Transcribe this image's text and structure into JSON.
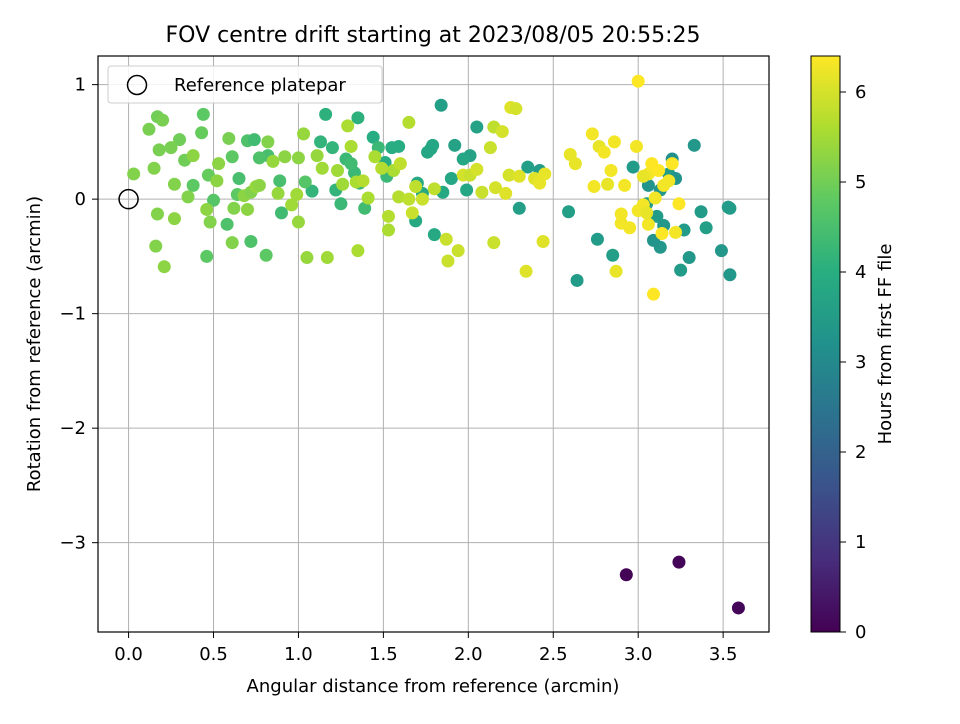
{
  "chart_data": {
    "type": "scatter",
    "title": "FOV centre drift starting at 2023/08/05 20:55:25",
    "xlabel": "Angular distance from reference (arcmin)",
    "ylabel": "Rotation from reference (arcmin)",
    "xlim": [
      -0.18,
      3.77
    ],
    "ylim": [
      -3.78,
      1.25
    ],
    "xticks": [
      0.0,
      0.5,
      1.0,
      1.5,
      2.0,
      2.5,
      3.0,
      3.5
    ],
    "xtick_labels": [
      "0.0",
      "0.5",
      "1.0",
      "1.5",
      "2.0",
      "2.5",
      "3.0",
      "3.5"
    ],
    "yticks": [
      -3,
      -2,
      -1,
      0,
      1
    ],
    "ytick_labels": [
      "−3",
      "−2",
      "−1",
      "0",
      "1"
    ],
    "grid": true,
    "legend": {
      "placement": "top-left",
      "entries": [
        "Reference platepar"
      ]
    },
    "reference_point": {
      "x": 0.0,
      "y": 0.0
    },
    "colorbar": {
      "label": "Hours from first FF file",
      "range": [
        0,
        6.4
      ],
      "ticks": [
        0,
        1,
        2,
        3,
        4,
        5,
        6
      ],
      "tick_labels": [
        "0",
        "1",
        "2",
        "3",
        "4",
        "5",
        "6"
      ],
      "colormap": "viridis"
    },
    "point_fields": [
      "x",
      "y",
      "hours"
    ],
    "points": [
      [
        2.93,
        -3.28,
        0.05
      ],
      [
        3.24,
        -3.17,
        0.08
      ],
      [
        3.59,
        -3.57,
        0.1
      ],
      [
        2.97,
        0.28,
        3.5
      ],
      [
        3.06,
        0.12,
        3.3
      ],
      [
        3.13,
        0.08,
        3.4
      ],
      [
        3.2,
        0.35,
        3.2
      ],
      [
        3.18,
        0.22,
        3.5
      ],
      [
        3.22,
        0.18,
        3.3
      ],
      [
        3.33,
        0.47,
        3.4
      ],
      [
        3.37,
        -0.11,
        3.5
      ],
      [
        3.4,
        -0.25,
        3.6
      ],
      [
        3.49,
        -0.45,
        3.4
      ],
      [
        3.53,
        -0.07,
        3.5
      ],
      [
        3.54,
        -0.08,
        3.5
      ],
      [
        3.54,
        -0.66,
        3.4
      ],
      [
        3.3,
        -0.51,
        3.4
      ],
      [
        3.27,
        -0.27,
        3.5
      ],
      [
        3.25,
        -0.62,
        3.5
      ],
      [
        3.13,
        -0.42,
        3.4
      ],
      [
        3.09,
        -0.36,
        3.3
      ],
      [
        3.15,
        -0.23,
        3.4
      ],
      [
        3.05,
        -0.04,
        3.5
      ],
      [
        3.11,
        -0.15,
        3.5
      ],
      [
        2.85,
        -0.49,
        3.6
      ],
      [
        2.76,
        -0.35,
        3.5
      ],
      [
        2.64,
        -0.71,
        3.5
      ],
      [
        2.59,
        -0.11,
        3.6
      ],
      [
        2.42,
        0.25,
        3.5
      ],
      [
        2.35,
        0.28,
        3.6
      ],
      [
        2.3,
        -0.08,
        3.6
      ],
      [
        2.05,
        0.63,
        3.7
      ],
      [
        2.01,
        0.38,
        3.7
      ],
      [
        1.84,
        0.82,
        3.6
      ],
      [
        1.92,
        0.47,
        3.7
      ],
      [
        1.97,
        0.35,
        3.8
      ],
      [
        1.99,
        0.08,
        3.8
      ],
      [
        1.9,
        0.18,
        3.8
      ],
      [
        1.78,
        0.44,
        3.8
      ],
      [
        1.79,
        0.47,
        3.8
      ],
      [
        1.76,
        0.41,
        3.8
      ],
      [
        1.69,
        -0.19,
        3.9
      ],
      [
        1.7,
        0.14,
        3.9
      ],
      [
        1.73,
        0.05,
        3.9
      ],
      [
        1.8,
        -0.31,
        3.9
      ],
      [
        1.85,
        0.06,
        3.9
      ],
      [
        1.55,
        0.45,
        4.0
      ],
      [
        1.59,
        0.46,
        4.0
      ],
      [
        1.51,
        0.32,
        4.0
      ],
      [
        1.44,
        0.54,
        4.0
      ],
      [
        1.35,
        0.71,
        4.1
      ],
      [
        1.16,
        0.74,
        4.1
      ],
      [
        1.2,
        0.45,
        4.2
      ],
      [
        1.13,
        0.5,
        4.2
      ],
      [
        1.08,
        0.07,
        4.2
      ],
      [
        1.22,
        0.08,
        4.2
      ],
      [
        1.25,
        -0.04,
        4.3
      ],
      [
        1.33,
        0.23,
        4.3
      ],
      [
        1.36,
        0.14,
        4.3
      ],
      [
        1.28,
        0.35,
        4.3
      ],
      [
        1.31,
        0.31,
        4.4
      ],
      [
        1.39,
        -0.08,
        4.4
      ],
      [
        1.47,
        0.45,
        4.3
      ],
      [
        1.52,
        0.2,
        4.3
      ],
      [
        0.89,
        0.16,
        4.5
      ],
      [
        0.82,
        0.38,
        4.5
      ],
      [
        0.9,
        -0.12,
        4.4
      ],
      [
        0.7,
        0.51,
        4.6
      ],
      [
        0.74,
        0.52,
        4.4
      ],
      [
        0.65,
        0.18,
        4.5
      ],
      [
        0.58,
        -0.22,
        4.6
      ],
      [
        0.72,
        -0.37,
        4.6
      ],
      [
        0.81,
        -0.49,
        4.8
      ],
      [
        0.77,
        0.36,
        4.6
      ],
      [
        1.04,
        0.15,
        4.7
      ],
      [
        0.5,
        -0.01,
        4.7
      ],
      [
        0.44,
        0.74,
        4.8
      ],
      [
        0.38,
        0.12,
        4.8
      ],
      [
        0.46,
        -0.5,
        4.8
      ],
      [
        0.61,
        0.37,
        4.8
      ],
      [
        0.64,
        0.04,
        4.8
      ],
      [
        0.43,
        0.58,
        4.9
      ],
      [
        0.47,
        0.21,
        4.9
      ],
      [
        0.3,
        0.52,
        5.0
      ],
      [
        0.33,
        0.34,
        5.0
      ],
      [
        0.17,
        0.72,
        5.0
      ],
      [
        0.2,
        0.69,
        5.1
      ],
      [
        0.12,
        0.61,
        5.1
      ],
      [
        0.18,
        0.43,
        5.1
      ],
      [
        0.15,
        0.27,
        5.2
      ],
      [
        0.03,
        0.22,
        5.2
      ],
      [
        0.17,
        -0.13,
        5.2
      ],
      [
        0.16,
        -0.41,
        5.2
      ],
      [
        0.21,
        -0.59,
        5.3
      ],
      [
        0.27,
        -0.17,
        5.3
      ],
      [
        0.27,
        0.13,
        5.2
      ],
      [
        0.25,
        0.45,
        5.1
      ],
      [
        0.35,
        0.02,
        5.2
      ],
      [
        0.38,
        0.38,
        5.3
      ],
      [
        0.46,
        -0.09,
        5.3
      ],
      [
        0.48,
        -0.2,
        5.2
      ],
      [
        0.52,
        0.16,
        5.3
      ],
      [
        0.53,
        0.31,
        5.3
      ],
      [
        0.59,
        0.53,
        5.1
      ],
      [
        0.62,
        -0.08,
        5.2
      ],
      [
        0.61,
        -0.38,
        5.2
      ],
      [
        0.68,
        0.03,
        5.3
      ],
      [
        0.7,
        -0.09,
        5.3
      ],
      [
        0.72,
        0.06,
        5.2
      ],
      [
        0.75,
        0.11,
        5.4
      ],
      [
        0.77,
        0.12,
        5.3
      ],
      [
        0.82,
        0.5,
        5.2
      ],
      [
        0.85,
        0.33,
        5.4
      ],
      [
        0.88,
        0.05,
        5.4
      ],
      [
        0.92,
        0.37,
        5.3
      ],
      [
        0.96,
        -0.05,
        5.5
      ],
      [
        0.99,
        0.04,
        5.5
      ],
      [
        1.0,
        -0.2,
        5.4
      ],
      [
        1.0,
        0.36,
        5.3
      ],
      [
        1.03,
        0.57,
        5.4
      ],
      [
        1.05,
        -0.51,
        5.4
      ],
      [
        1.11,
        0.38,
        5.4
      ],
      [
        1.14,
        0.27,
        5.5
      ],
      [
        1.17,
        -0.51,
        5.5
      ],
      [
        1.23,
        0.25,
        5.5
      ],
      [
        1.26,
        0.13,
        5.5
      ],
      [
        1.29,
        0.64,
        5.6
      ],
      [
        1.31,
        0.46,
        5.6
      ],
      [
        1.34,
        0.15,
        5.6
      ],
      [
        1.35,
        -0.45,
        5.6
      ],
      [
        1.38,
        0.16,
        5.7
      ],
      [
        1.41,
        0.01,
        5.6
      ],
      [
        1.45,
        0.37,
        5.6
      ],
      [
        1.49,
        0.27,
        5.7
      ],
      [
        1.53,
        -0.15,
        5.7
      ],
      [
        1.53,
        -0.27,
        5.6
      ],
      [
        1.56,
        0.25,
        5.6
      ],
      [
        1.59,
        0.02,
        5.7
      ],
      [
        1.6,
        0.31,
        5.8
      ],
      [
        1.65,
        0.67,
        5.7
      ],
      [
        1.65,
        0.0,
        5.8
      ],
      [
        1.67,
        -0.12,
        5.9
      ],
      [
        1.69,
        0.11,
        5.8
      ],
      [
        1.73,
        0.0,
        5.9
      ],
      [
        1.8,
        0.09,
        5.8
      ],
      [
        1.87,
        -0.35,
        5.9
      ],
      [
        1.88,
        -0.54,
        5.9
      ],
      [
        1.94,
        -0.45,
        5.9
      ],
      [
        1.97,
        0.21,
        6.0
      ],
      [
        2.01,
        0.21,
        5.9
      ],
      [
        2.05,
        0.26,
        6.0
      ],
      [
        2.08,
        0.06,
        5.9
      ],
      [
        2.13,
        0.45,
        5.9
      ],
      [
        2.15,
        0.63,
        5.8
      ],
      [
        2.16,
        0.1,
        6.0
      ],
      [
        2.15,
        -0.38,
        5.9
      ],
      [
        2.2,
        0.59,
        6.0
      ],
      [
        2.22,
        0.05,
        6.1
      ],
      [
        2.24,
        0.21,
        6.0
      ],
      [
        2.25,
        0.8,
        6.1
      ],
      [
        2.28,
        0.79,
        6.0
      ],
      [
        2.3,
        0.2,
        6.1
      ],
      [
        2.34,
        -0.63,
        6.1
      ],
      [
        2.39,
        0.18,
        6.1
      ],
      [
        2.42,
        0.14,
        6.2
      ],
      [
        2.44,
        -0.37,
        6.1
      ],
      [
        2.45,
        0.22,
        6.2
      ],
      [
        2.6,
        0.39,
        6.2
      ],
      [
        2.63,
        0.31,
        6.2
      ],
      [
        2.73,
        0.57,
        6.3
      ],
      [
        2.74,
        0.11,
        6.3
      ],
      [
        2.77,
        0.46,
        6.2
      ],
      [
        2.8,
        0.41,
        6.3
      ],
      [
        2.82,
        0.13,
        6.2
      ],
      [
        2.84,
        0.25,
        6.3
      ],
      [
        2.86,
        0.5,
        6.3
      ],
      [
        2.87,
        -0.63,
        6.2
      ],
      [
        2.9,
        -0.13,
        6.3
      ],
      [
        2.9,
        -0.21,
        6.3
      ],
      [
        2.92,
        0.12,
        6.3
      ],
      [
        2.95,
        -0.25,
        6.3
      ],
      [
        2.99,
        0.46,
        6.3
      ],
      [
        3.0,
        -0.1,
        6.3
      ],
      [
        3.0,
        1.03,
        6.4
      ],
      [
        3.03,
        -0.05,
        6.3
      ],
      [
        3.06,
        0.22,
        6.3
      ],
      [
        3.06,
        -0.22,
        6.3
      ],
      [
        3.08,
        0.31,
        6.4
      ],
      [
        3.09,
        -0.83,
        6.4
      ],
      [
        3.1,
        0.01,
        6.3
      ],
      [
        3.12,
        0.25,
        6.4
      ],
      [
        3.14,
        -0.3,
        6.4
      ],
      [
        3.15,
        0.12,
        6.3
      ],
      [
        3.18,
        0.16,
        6.3
      ],
      [
        3.2,
        0.31,
        6.4
      ],
      [
        3.22,
        -0.29,
        6.3
      ],
      [
        3.24,
        -0.04,
        6.4
      ],
      [
        3.03,
        0.2,
        6.2
      ],
      [
        3.05,
        -0.12,
        6.2
      ]
    ]
  }
}
